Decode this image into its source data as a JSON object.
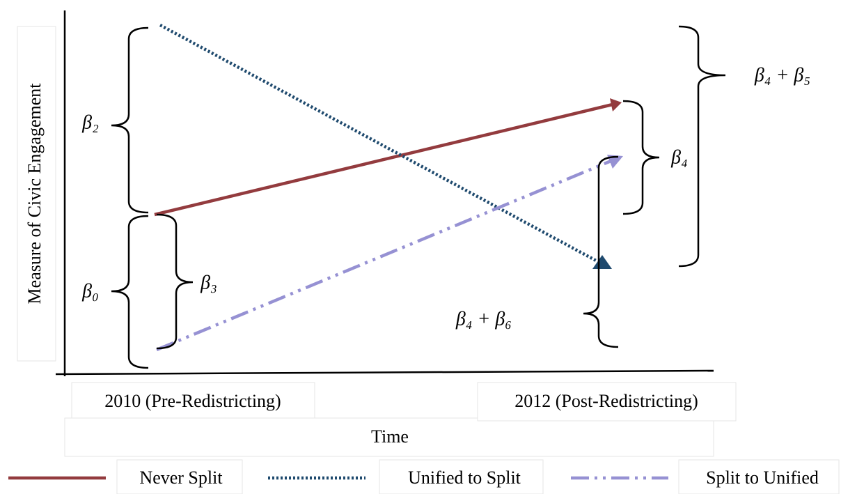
{
  "y_axis_label": "Measure of Civic Engagement",
  "x_labels": [
    "2010 (Pre-Redistricting)",
    "2012 (Post-Redistricting)"
  ],
  "x_title": "Time",
  "braces": [
    "β₂",
    "β₀",
    "β₃",
    "β₄",
    "β₄ + β₅",
    "β₄ + β₆"
  ],
  "legend": [
    "Never Split",
    "Unified to Split",
    "Split to Unified"
  ]
}
